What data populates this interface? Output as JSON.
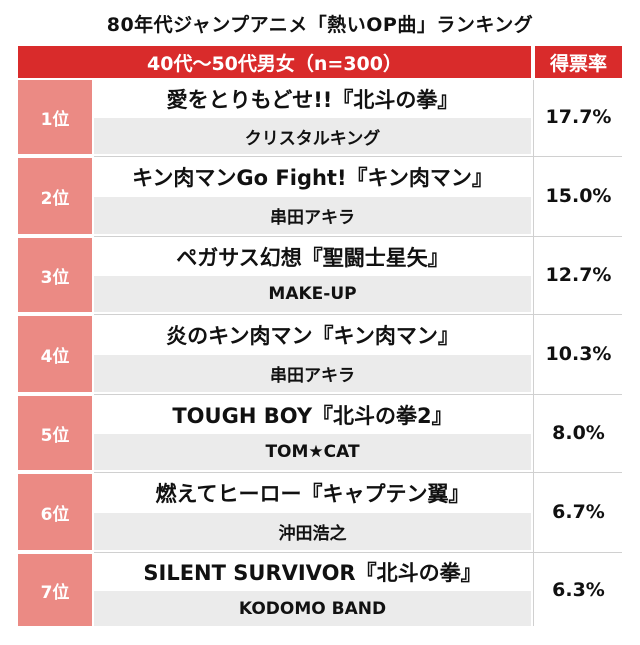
{
  "title": "80年代ジャンプアニメ「熱いOP曲」ランキング",
  "header": {
    "group_label": "40代〜50代男女（n=300）",
    "rate_label": "得票率"
  },
  "rows": [
    {
      "rank": "1位",
      "song": "愛をとりもどせ!!『北斗の拳』",
      "artist": "クリスタルキング",
      "rate": "17.7%"
    },
    {
      "rank": "2位",
      "song": "キン肉マンGo Fight!『キン肉マン』",
      "artist": "串田アキラ",
      "rate": "15.0%"
    },
    {
      "rank": "3位",
      "song": "ペガサス幻想『聖闘士星矢』",
      "artist": "MAKE-UP",
      "rate": "12.7%"
    },
    {
      "rank": "4位",
      "song": "炎のキン肉マン『キン肉マン』",
      "artist": "串田アキラ",
      "rate": "10.3%"
    },
    {
      "rank": "5位",
      "song": "TOUGH BOY『北斗の拳2』",
      "artist": "TOM★CAT",
      "rate": "8.0%"
    },
    {
      "rank": "6位",
      "song": "燃えてヒーロー『キャプテン翼』",
      "artist": "沖田浩之",
      "rate": "6.7%"
    },
    {
      "rank": "7位",
      "song": "SILENT SURVIVOR『北斗の拳』",
      "artist": "KODOMO BAND",
      "rate": "6.3%"
    }
  ],
  "colors": {
    "header": "#d92b2b",
    "rank_cell": "#eb8a84",
    "artist_row": "#ebebeb"
  }
}
